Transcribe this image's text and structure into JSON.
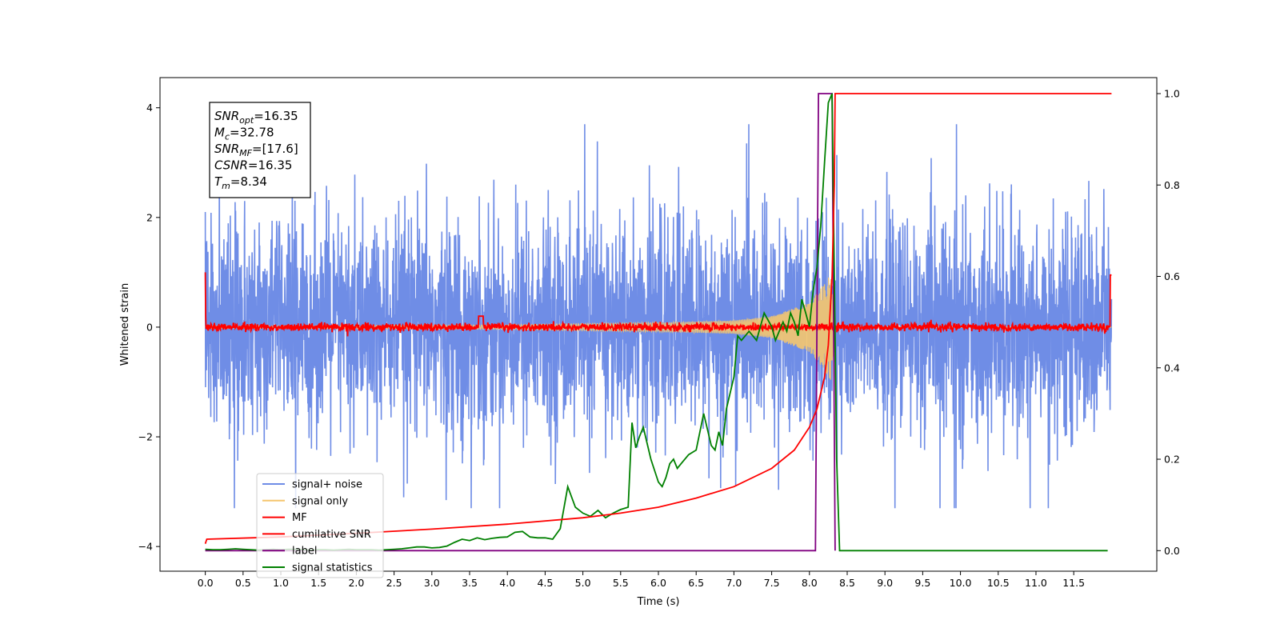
{
  "chart_data": {
    "type": "line",
    "xlabel": "Time (s)",
    "ylabel": "Whitened strain",
    "xlim": [
      -0.6,
      12.6
    ],
    "ylim": [
      -4.45,
      4.55
    ],
    "y2lim": [
      -0.045,
      1.035
    ],
    "x_ticks": [
      "0.0",
      "0.5",
      "1.0",
      "1.5",
      "2.0",
      "2.5",
      "3.0",
      "3.5",
      "4.0",
      "4.5",
      "5.0",
      "5.5",
      "6.0",
      "6.5",
      "7.0",
      "7.5",
      "8.0",
      "8.5",
      "9.0",
      "9.5",
      "10.0",
      "10.5",
      "11.0",
      "11.5"
    ],
    "y_ticks": [
      "-4",
      "-2",
      "0",
      "2",
      "4"
    ],
    "y2_ticks": [
      "0.0",
      "0.2",
      "0.4",
      "0.6",
      "0.8",
      "1.0"
    ],
    "grid": false,
    "legend_position": "lower-left",
    "annotation": {
      "lines": [
        {
          "base": "SNR",
          "sub": "opt",
          "value": "=16.35"
        },
        {
          "base": "M",
          "sub": "c",
          "value": "=32.78"
        },
        {
          "base": "SNR",
          "sub": "MF",
          "value": "=[17.6]"
        },
        {
          "base": "CSNR",
          "sub": "",
          "value": "=16.35"
        },
        {
          "base": "T",
          "sub": "m",
          "value": "=8.34"
        }
      ]
    },
    "series": [
      {
        "name": "signal+ noise",
        "axis": "left",
        "color": "#6f8de6",
        "description": "whitened noise, amplitude ~ +/-1.5 typical, peaks to +/-3, from 0 to 12 s"
      },
      {
        "name": "signal only",
        "axis": "left",
        "color": "#f5c66e",
        "chirp_envelope": {
          "x": [
            0,
            4,
            6,
            7,
            7.5,
            8.0,
            8.2,
            8.3,
            8.34
          ],
          "y": [
            0.02,
            0.04,
            0.08,
            0.12,
            0.2,
            0.45,
            0.8,
            1.0,
            0.0
          ]
        }
      },
      {
        "name": "MF",
        "axis": "left",
        "color": "#ff0000",
        "description": "matched-filter output, near 0 with ~0.08 ripple, value 1.0 at t=0, 0.2 bump at 3.65, ~0.95 at t=12"
      },
      {
        "name": "cumilative SNR",
        "axis": "right",
        "color": "#ff0000",
        "x": [
          0.0,
          0.02,
          1,
          2,
          3,
          4,
          5,
          5.5,
          6,
          6.5,
          7,
          7.5,
          7.8,
          8.0,
          8.1,
          8.2,
          8.25,
          8.3,
          8.33,
          8.34,
          12.0
        ],
        "y": [
          0.015,
          0.025,
          0.03,
          0.038,
          0.047,
          0.058,
          0.072,
          0.082,
          0.095,
          0.115,
          0.14,
          0.18,
          0.22,
          0.27,
          0.31,
          0.38,
          0.45,
          0.6,
          0.8,
          1.0,
          1.0
        ]
      },
      {
        "name": "label",
        "axis": "right",
        "color": "#800080",
        "x": [
          0.0,
          8.08,
          8.12,
          8.3,
          8.34
        ],
        "y": [
          0.0,
          0.0,
          1.0,
          1.0,
          0.0
        ]
      },
      {
        "name": "signal statistics",
        "axis": "right",
        "color": "#008000",
        "x": [
          0.0,
          0.1,
          0.2,
          0.3,
          0.4,
          0.5,
          0.6,
          0.7,
          0.8,
          0.9,
          1.0,
          1.1,
          1.2,
          1.3,
          1.4,
          1.5,
          1.6,
          1.7,
          1.8,
          1.9,
          2.0,
          2.1,
          2.2,
          2.3,
          2.4,
          2.5,
          2.6,
          2.7,
          2.8,
          2.9,
          3.0,
          3.1,
          3.2,
          3.3,
          3.4,
          3.5,
          3.6,
          3.7,
          3.8,
          3.9,
          4.0,
          4.1,
          4.2,
          4.3,
          4.4,
          4.5,
          4.6,
          4.7,
          4.8,
          4.9,
          5.0,
          5.1,
          5.2,
          5.3,
          5.4,
          5.5,
          5.6,
          5.65,
          5.7,
          5.75,
          5.8,
          5.9,
          6.0,
          6.05,
          6.1,
          6.15,
          6.2,
          6.25,
          6.3,
          6.4,
          6.5,
          6.6,
          6.7,
          6.75,
          6.8,
          6.85,
          6.9,
          7.0,
          7.05,
          7.1,
          7.2,
          7.3,
          7.4,
          7.5,
          7.55,
          7.6,
          7.65,
          7.7,
          7.75,
          7.8,
          7.85,
          7.9,
          7.95,
          8.0,
          8.05,
          8.1,
          8.15,
          8.2,
          8.25,
          8.3,
          8.33,
          8.36,
          8.4,
          8.45,
          8.5,
          9.0,
          10.0,
          11.0,
          11.95
        ],
        "y": [
          0.003,
          0.002,
          0.002,
          0.003,
          0.004,
          0.003,
          0.002,
          0.001,
          0.002,
          0.003,
          0.002,
          0.003,
          0.003,
          0.002,
          0.001,
          0.002,
          0.002,
          0.001,
          0.002,
          0.003,
          0.002,
          0.002,
          0.002,
          0.001,
          0.002,
          0.003,
          0.004,
          0.006,
          0.008,
          0.008,
          0.006,
          0.007,
          0.01,
          0.018,
          0.025,
          0.022,
          0.028,
          0.024,
          0.027,
          0.029,
          0.03,
          0.04,
          0.042,
          0.03,
          0.028,
          0.028,
          0.025,
          0.048,
          0.14,
          0.095,
          0.082,
          0.075,
          0.088,
          0.072,
          0.082,
          0.09,
          0.095,
          0.28,
          0.225,
          0.25,
          0.27,
          0.2,
          0.15,
          0.14,
          0.16,
          0.19,
          0.2,
          0.18,
          0.19,
          0.21,
          0.22,
          0.3,
          0.23,
          0.22,
          0.26,
          0.23,
          0.31,
          0.38,
          0.47,
          0.46,
          0.48,
          0.46,
          0.52,
          0.49,
          0.46,
          0.48,
          0.5,
          0.48,
          0.52,
          0.5,
          0.47,
          0.55,
          0.52,
          0.49,
          0.57,
          0.62,
          0.71,
          0.85,
          0.98,
          1.0,
          0.6,
          0.2,
          0.0,
          0.0,
          0.0,
          0.0,
          0.0,
          0.0,
          0.0
        ]
      }
    ]
  }
}
